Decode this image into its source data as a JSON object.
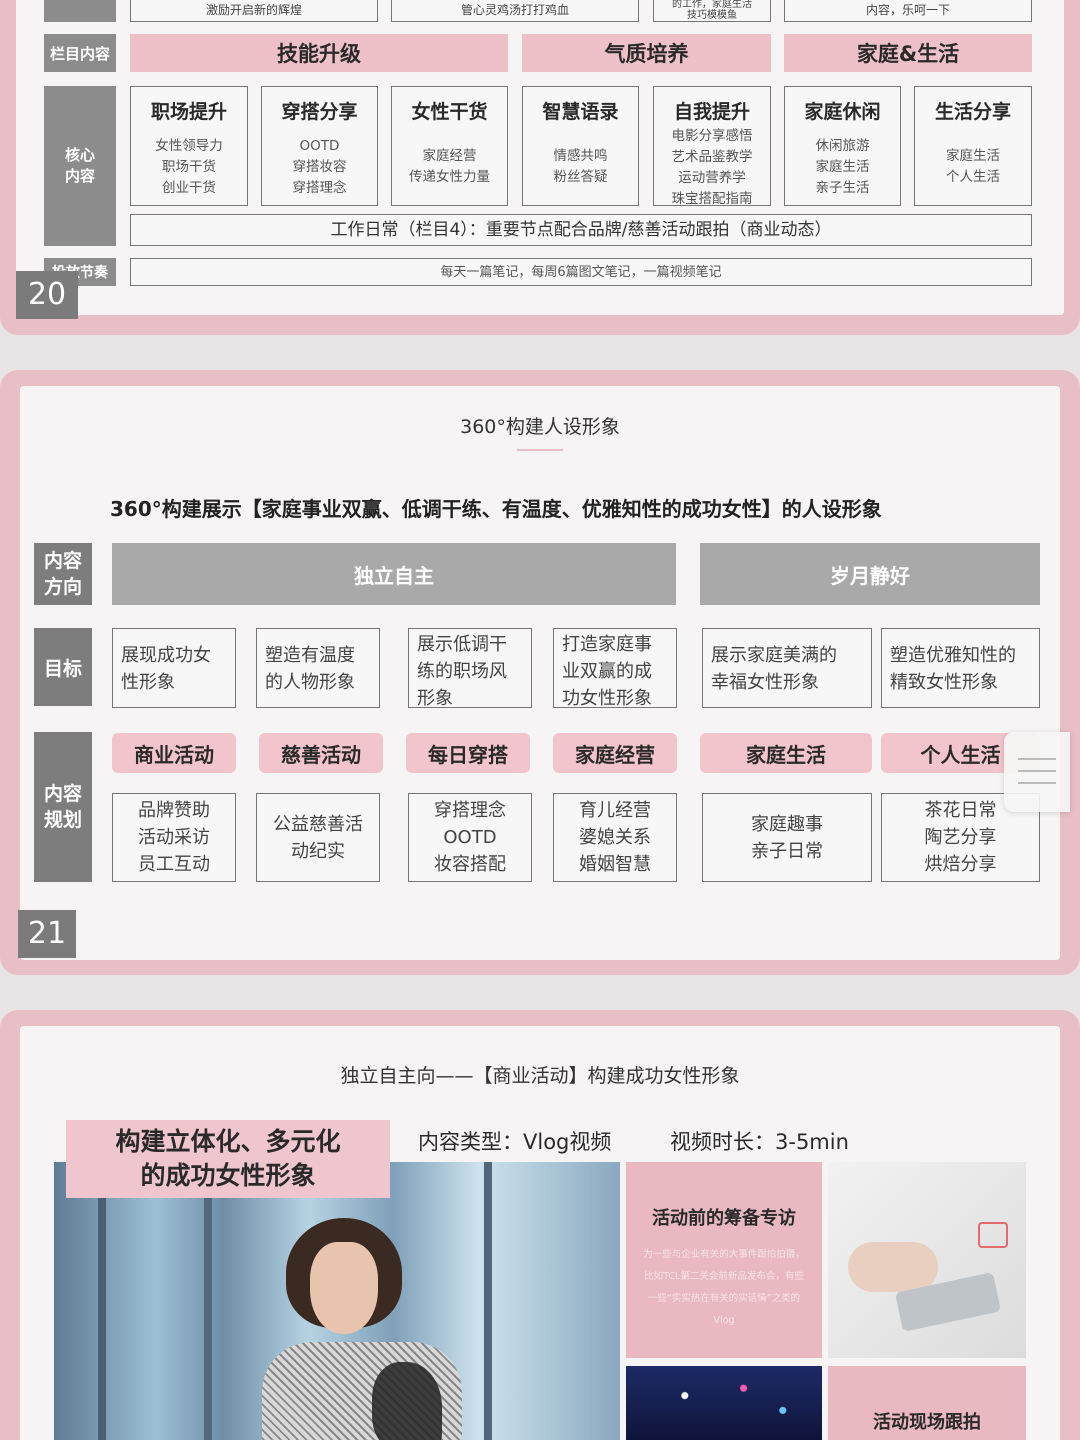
{
  "slide20": {
    "page": "20",
    "top_row": [
      "激励开启新的辉煌",
      "管心灵鸡汤打打鸡血",
      "的工作，家庭生活\n技巧模模鱼",
      "内容，乐呵一下"
    ],
    "column_label": "栏目内容",
    "columns": [
      "技能升级",
      "气质培养",
      "家庭&生活"
    ],
    "core_label": "核心\n内容",
    "cards": [
      {
        "title": "职场提升",
        "lines": [
          "女性领导力",
          "职场干货",
          "创业干货"
        ]
      },
      {
        "title": "穿搭分享",
        "lines": [
          "OOTD",
          "穿搭妆容",
          "穿搭理念"
        ]
      },
      {
        "title": "女性干货",
        "lines": [
          "家庭经营",
          "传递女性力量"
        ]
      },
      {
        "title": "智慧语录",
        "lines": [
          "情感共鸣",
          "粉丝答疑"
        ]
      },
      {
        "title": "自我提升",
        "lines": [
          "电影分享感悟",
          "艺术品鉴教学",
          "运动营养学",
          "珠宝搭配指南"
        ]
      },
      {
        "title": "家庭休闲",
        "lines": [
          "休闲旅游",
          "家庭生活",
          "亲子生活"
        ]
      },
      {
        "title": "生活分享",
        "lines": [
          "家庭生活",
          "个人生活"
        ]
      }
    ],
    "work_daily": "工作日常（栏目4）：重要节点配合品牌/慈善活动跟拍（商业动态）",
    "rhythm_label": "投放节奏",
    "rhythm": "每天一篇笔记，每周6篇图文笔记，一篇视频笔记"
  },
  "slide21": {
    "page": "21",
    "header": "360°构建人设形象",
    "subtitle": "360°构建展示【家庭事业双赢、低调干练、有温度、优雅知性的成功女性】的人设形象",
    "direction_label": "内容\n方向",
    "directions": [
      "独立自主",
      "岁月静好"
    ],
    "goal_label": "目标",
    "goals": [
      "展现成功女\n性形象",
      "塑造有温度\n的人物形象",
      "展示低调干\n练的职场风\n形象",
      "打造家庭事\n业双赢的成\n功女性形象",
      "展示家庭美满的\n幸福女性形象",
      "塑造优雅知性的\n精致女性形象"
    ],
    "plan_label": "内容\n规划",
    "tags": [
      "商业活动",
      "慈善活动",
      "每日穿搭",
      "家庭经营",
      "家庭生活",
      "个人生活"
    ],
    "plans": [
      [
        "品牌赞助",
        "活动采访",
        "员工互动"
      ],
      [
        "公益慈善活",
        "动纪实"
      ],
      [
        "穿搭理念",
        "OOTD",
        "妆容搭配"
      ],
      [
        "育儿经营",
        "婆媳关系",
        "婚姻智慧"
      ],
      [
        "家庭趣事",
        "亲子日常"
      ],
      [
        "茶花日常",
        "陶艺分享",
        "烘焙分享"
      ]
    ]
  },
  "slide22": {
    "header": "独立自主向——【商业活动】构建成功女性形象",
    "banner": "构建立体化、多元化\n的成功女性形象",
    "content_type": "内容类型：Vlog视频",
    "duration": "视频时长：3-5min",
    "card1_title": "活动前的筹备专访",
    "card1_text": "为一些与企业有关的大事件跟拍拍摄，比如TCL第二关会前新品发布会，有些一些“实实热在有关的实话情”之类的Vlog",
    "card2_title": "活动现场跟拍"
  }
}
